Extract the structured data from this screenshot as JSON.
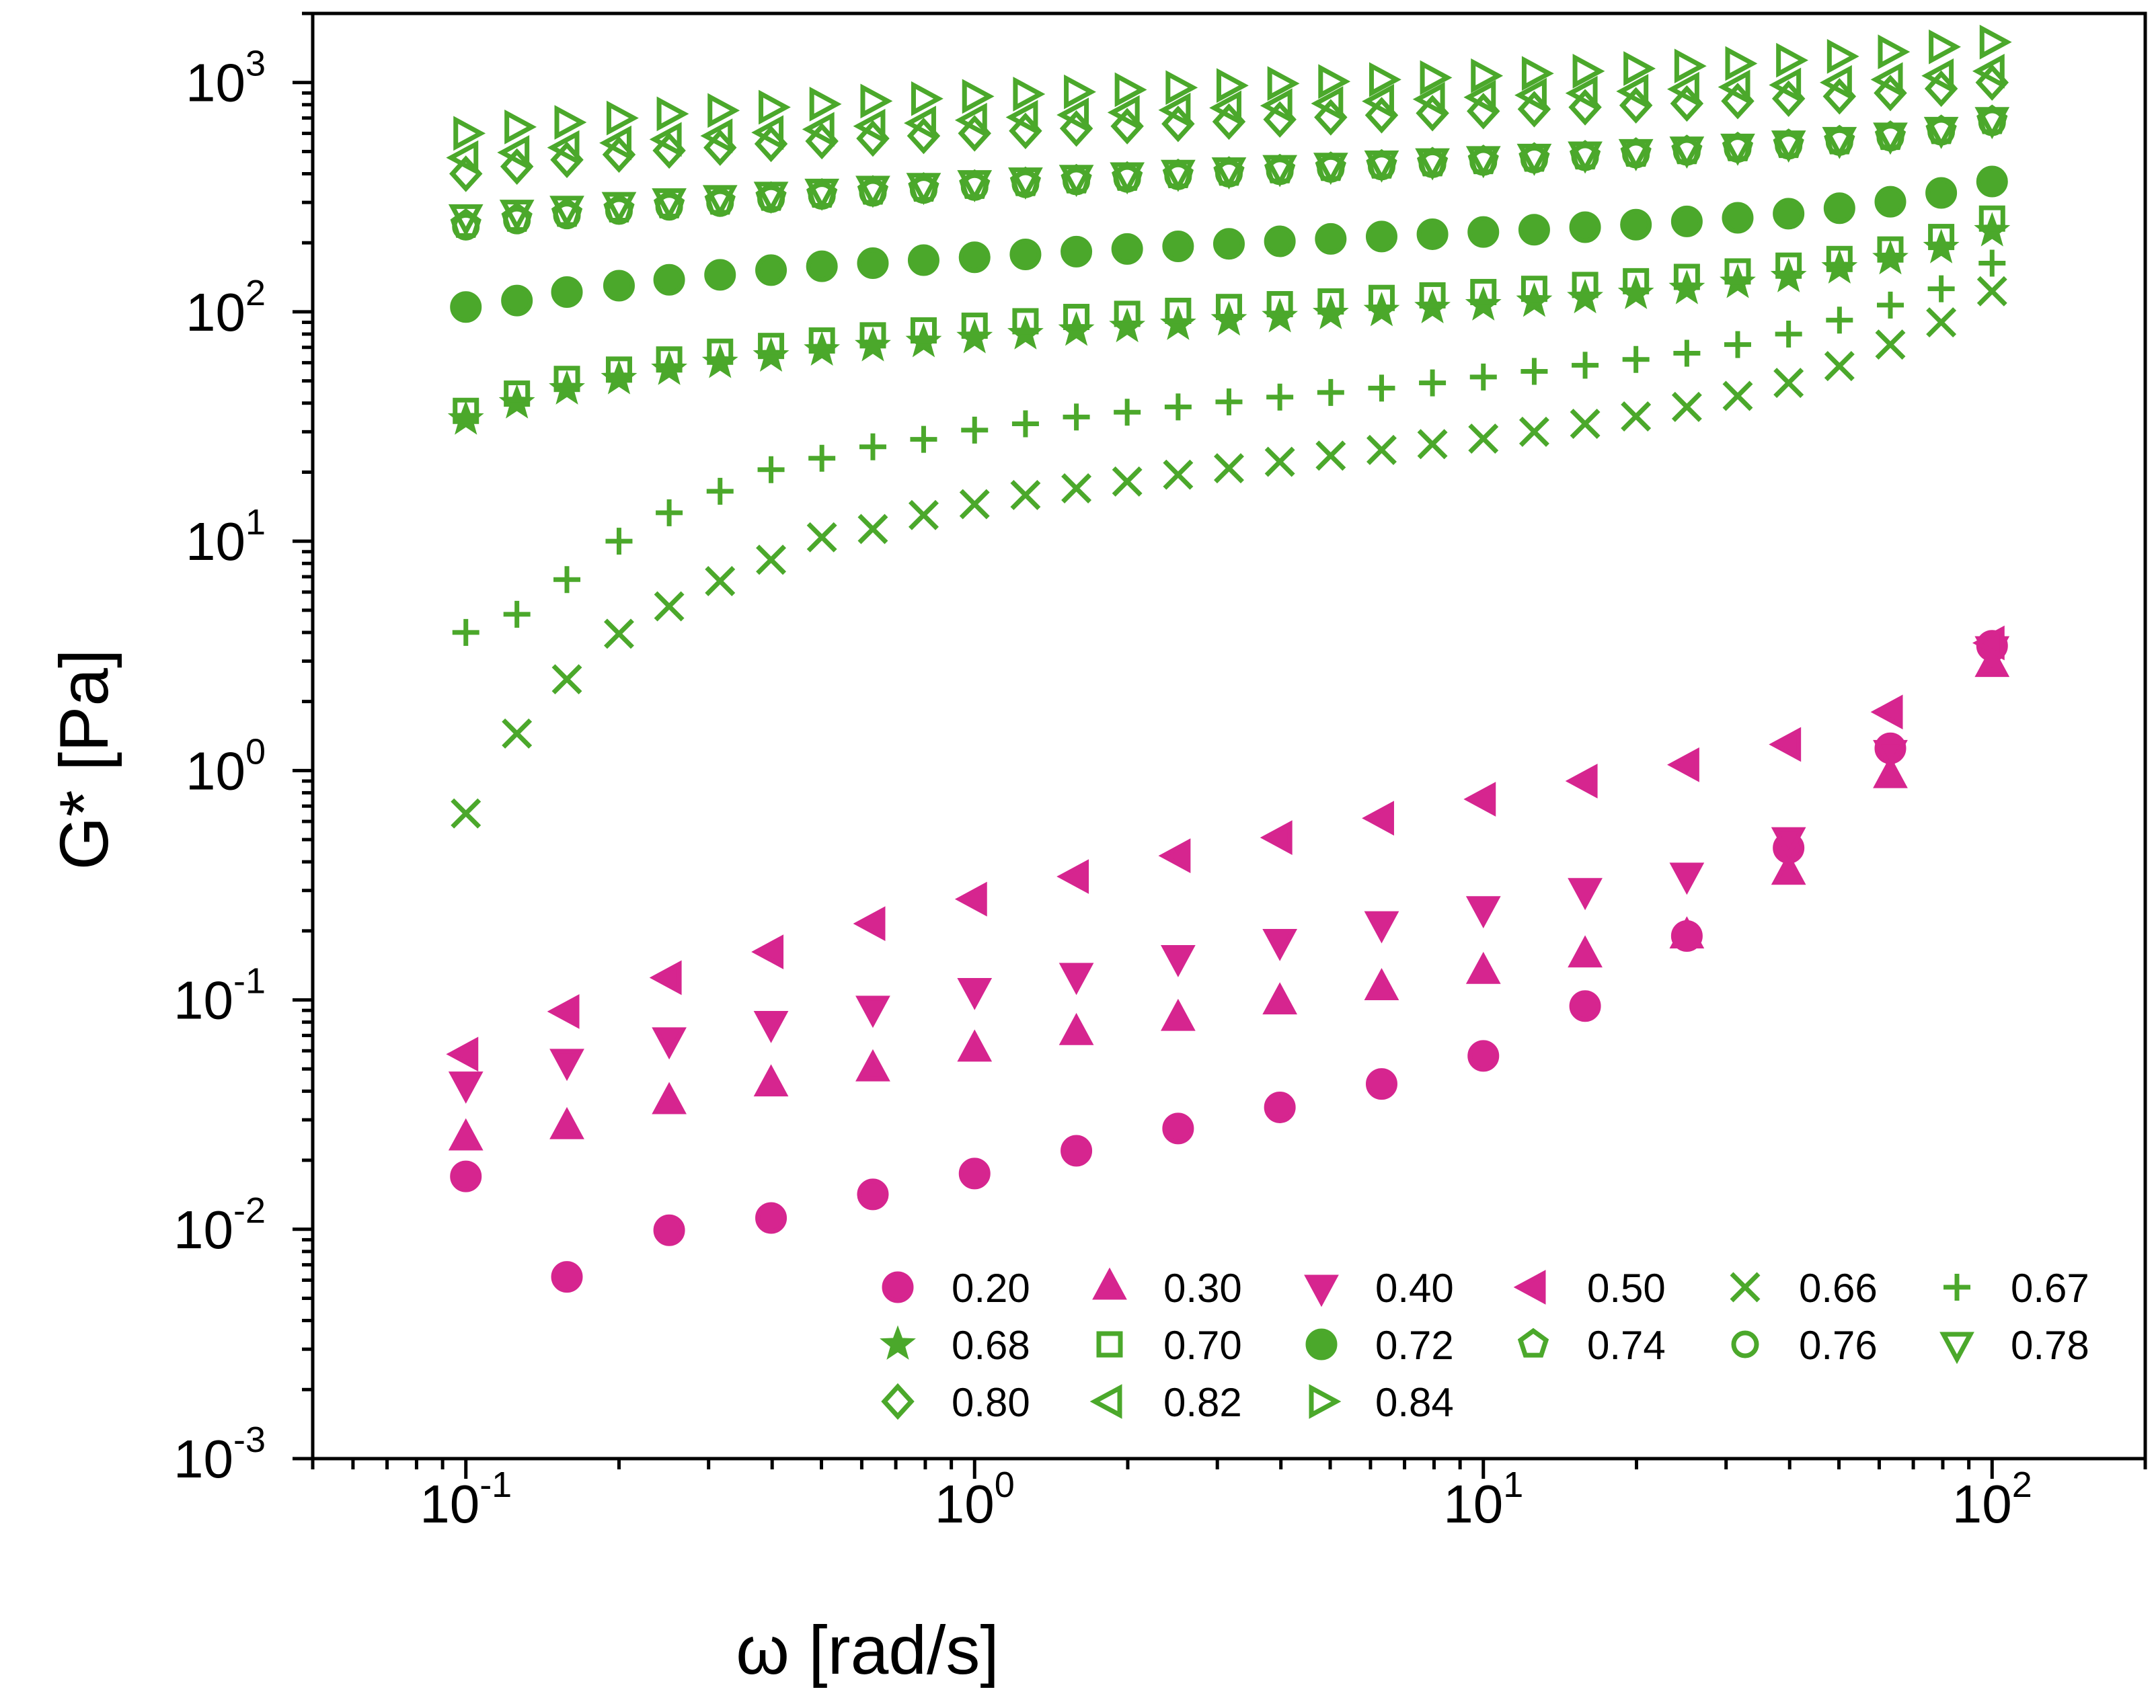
{
  "chart_data": {
    "type": "scatter",
    "xscale": "log",
    "yscale": "log",
    "xlim": [
      0.05,
      200
    ],
    "ylim": [
      0.001,
      2000
    ],
    "xlabel": "ω [rad/s]",
    "ylabel": "G* [Pa]",
    "x_ticks": [
      {
        "value": 0.1,
        "base": "10",
        "exp": "-1"
      },
      {
        "value": 1,
        "base": "10",
        "exp": "0"
      },
      {
        "value": 10,
        "base": "10",
        "exp": "1"
      },
      {
        "value": 100,
        "base": "10",
        "exp": "2"
      }
    ],
    "y_ticks": [
      {
        "value": 0.001,
        "base": "10",
        "exp": "-3"
      },
      {
        "value": 0.01,
        "base": "10",
        "exp": "-2"
      },
      {
        "value": 0.1,
        "base": "10",
        "exp": "-1"
      },
      {
        "value": 1,
        "base": "10",
        "exp": "0"
      },
      {
        "value": 10,
        "base": "10",
        "exp": "1"
      },
      {
        "value": 100,
        "base": "10",
        "exp": "2"
      },
      {
        "value": 1000,
        "base": "10",
        "exp": "3"
      }
    ],
    "legend_position": "bottom-right",
    "colors": {
      "magenta": "#d6258f",
      "green": "#4ba82b"
    },
    "series": [
      {
        "name": "0.20",
        "marker": "circle",
        "filled": true,
        "color": "magenta",
        "x": [
          0.1,
          0.158,
          0.251,
          0.398,
          0.631,
          1.0,
          1.585,
          2.512,
          3.981,
          6.31,
          10.0,
          15.85,
          25.12,
          39.81,
          63.1,
          100.0
        ],
        "y": [
          0.017,
          0.0062,
          0.0099,
          0.0112,
          0.0142,
          0.0175,
          0.022,
          0.0275,
          0.034,
          0.043,
          0.057,
          0.094,
          0.19,
          0.46,
          1.25,
          3.5
        ]
      },
      {
        "name": "0.30",
        "marker": "triangle-up",
        "filled": true,
        "color": "magenta",
        "x": [
          0.1,
          0.158,
          0.251,
          0.398,
          0.631,
          1.0,
          1.585,
          2.512,
          3.981,
          6.31,
          10.0,
          15.85,
          25.12,
          39.81,
          63.1,
          100.0
        ],
        "y": [
          0.025,
          0.028,
          0.036,
          0.043,
          0.05,
          0.061,
          0.072,
          0.083,
          0.098,
          0.113,
          0.133,
          0.157,
          0.19,
          0.36,
          0.95,
          2.9
        ]
      },
      {
        "name": "0.40",
        "marker": "triangle-down",
        "filled": true,
        "color": "magenta",
        "x": [
          0.1,
          0.158,
          0.251,
          0.398,
          0.631,
          1.0,
          1.585,
          2.512,
          3.981,
          6.31,
          10.0,
          15.85,
          25.12,
          39.81,
          63.1,
          100.0
        ],
        "y": [
          0.043,
          0.054,
          0.067,
          0.079,
          0.092,
          0.11,
          0.128,
          0.153,
          0.18,
          0.215,
          0.25,
          0.3,
          0.35,
          0.5,
          1.2,
          3.4
        ]
      },
      {
        "name": "0.50",
        "marker": "triangle-left",
        "filled": true,
        "color": "magenta",
        "x": [
          0.1,
          0.158,
          0.251,
          0.398,
          0.631,
          1.0,
          1.585,
          2.512,
          3.981,
          6.31,
          10.0,
          15.85,
          25.12,
          39.81,
          63.1,
          100.0
        ],
        "y": [
          0.058,
          0.089,
          0.125,
          0.162,
          0.215,
          0.275,
          0.345,
          0.425,
          0.51,
          0.62,
          0.75,
          0.9,
          1.06,
          1.3,
          1.8,
          3.6
        ]
      },
      {
        "name": "0.66",
        "marker": "x",
        "filled": false,
        "color": "green",
        "x": [
          0.1,
          0.126,
          0.158,
          0.2,
          0.251,
          0.316,
          0.398,
          0.501,
          0.631,
          0.794,
          1.0,
          1.259,
          1.585,
          1.995,
          2.512,
          3.162,
          3.981,
          5.012,
          6.31,
          7.943,
          10.0,
          12.59,
          15.85,
          19.95,
          25.12,
          31.62,
          39.81,
          50.12,
          63.1,
          79.43,
          100.0
        ],
        "y": [
          0.65,
          1.45,
          2.5,
          3.95,
          5.2,
          6.7,
          8.3,
          10.4,
          11.3,
          13.0,
          14.5,
          15.9,
          17.0,
          18.2,
          19.5,
          20.8,
          22.2,
          23.6,
          25.0,
          26.5,
          28.0,
          30.0,
          32.5,
          35.0,
          38.5,
          43.0,
          49.0,
          58.0,
          72.0,
          90.0,
          123.0
        ]
      },
      {
        "name": "0.67",
        "marker": "plus",
        "filled": false,
        "color": "green",
        "x": [
          0.1,
          0.126,
          0.158,
          0.2,
          0.251,
          0.316,
          0.398,
          0.501,
          0.631,
          0.794,
          1.0,
          1.259,
          1.585,
          1.995,
          2.512,
          3.162,
          3.981,
          5.012,
          6.31,
          7.943,
          10.0,
          12.59,
          15.85,
          19.95,
          25.12,
          31.62,
          39.81,
          50.12,
          63.1,
          79.43,
          100.0
        ],
        "y": [
          4.0,
          4.8,
          6.8,
          10.0,
          13.3,
          16.5,
          20.5,
          23.0,
          25.8,
          27.8,
          30.5,
          32.5,
          34.8,
          36.5,
          38.5,
          40.5,
          42.5,
          44.5,
          46.5,
          49.0,
          52.0,
          55.0,
          58.5,
          62.0,
          66.0,
          72.0,
          80.0,
          92.0,
          107.0,
          126.0,
          163.0
        ]
      },
      {
        "name": "0.68",
        "marker": "star",
        "filled": true,
        "color": "green",
        "x": [
          0.1,
          0.126,
          0.158,
          0.2,
          0.251,
          0.316,
          0.398,
          0.501,
          0.631,
          0.794,
          1.0,
          1.259,
          1.585,
          1.995,
          2.512,
          3.162,
          3.981,
          5.012,
          6.31,
          7.943,
          10.0,
          12.59,
          15.85,
          19.95,
          25.12,
          31.62,
          39.81,
          50.12,
          63.1,
          79.43,
          100.0
        ],
        "y": [
          34.0,
          40.0,
          46.0,
          51.0,
          56.0,
          60.0,
          64.0,
          68.0,
          71.0,
          74.0,
          77.0,
          80.0,
          83.0,
          86.0,
          88.0,
          92.0,
          95.0,
          98.0,
          101.0,
          104.0,
          107.0,
          111.0,
          115.0,
          120.0,
          126.0,
          134.0,
          142.0,
          155.0,
          170.0,
          190.0,
          225.0
        ]
      },
      {
        "name": "0.70",
        "marker": "square",
        "filled": false,
        "color": "green",
        "x": [
          0.1,
          0.126,
          0.158,
          0.2,
          0.251,
          0.316,
          0.398,
          0.501,
          0.631,
          0.794,
          1.0,
          1.259,
          1.585,
          1.995,
          2.512,
          3.162,
          3.981,
          5.012,
          6.31,
          7.943,
          10.0,
          12.59,
          15.85,
          19.95,
          25.12,
          31.62,
          39.81,
          50.12,
          63.1,
          79.43,
          100.0
        ],
        "y": [
          37.0,
          44.0,
          51.0,
          56.0,
          62.0,
          67.0,
          71.0,
          75.0,
          79.0,
          83.0,
          87.0,
          91.0,
          95.0,
          98.0,
          101.0,
          105.0,
          108.0,
          111.0,
          115.0,
          118.0,
          122.0,
          126.0,
          131.0,
          136.0,
          142.0,
          150.0,
          159.0,
          170.0,
          187.0,
          212.0,
          255.0
        ]
      },
      {
        "name": "0.72",
        "marker": "circle",
        "filled": true,
        "color": "green",
        "x": [
          0.1,
          0.126,
          0.158,
          0.2,
          0.251,
          0.316,
          0.398,
          0.501,
          0.631,
          0.794,
          1.0,
          1.259,
          1.585,
          1.995,
          2.512,
          3.162,
          3.981,
          5.012,
          6.31,
          7.943,
          10.0,
          12.59,
          15.85,
          19.95,
          25.12,
          31.62,
          39.81,
          50.12,
          63.1,
          79.43,
          100.0
        ],
        "y": [
          105.0,
          112.0,
          122.0,
          130.0,
          138.0,
          145.0,
          152.0,
          158.0,
          163.0,
          168.0,
          173.0,
          178.0,
          183.0,
          188.0,
          193.0,
          198.0,
          203.0,
          208.0,
          213.0,
          218.0,
          223.0,
          228.0,
          234.0,
          240.0,
          248.0,
          257.0,
          268.0,
          283.0,
          302.0,
          330.0,
          370.0
        ]
      },
      {
        "name": "0.74",
        "marker": "pentagon",
        "filled": false,
        "color": "green",
        "x": [
          0.1,
          0.126,
          0.158,
          0.2,
          0.251,
          0.316,
          0.398,
          0.501,
          0.631,
          0.794,
          1.0,
          1.259,
          1.585,
          1.995,
          2.512,
          3.162,
          3.981,
          5.012,
          6.31,
          7.943,
          10.0,
          12.59,
          15.85,
          19.95,
          25.12,
          31.62,
          39.81,
          50.12,
          63.1,
          79.43,
          100.0
        ],
        "y": [
          240.0,
          255.0,
          268.0,
          280.0,
          292.0,
          303.0,
          315.0,
          325.0,
          335.0,
          345.0,
          355.0,
          365.0,
          375.0,
          385.0,
          395.0,
          405.0,
          415.0,
          425.0,
          435.0,
          445.0,
          455.0,
          466.0,
          477.0,
          490.0,
          503.0,
          518.0,
          535.0,
          555.0,
          580.0,
          615.0,
          680.0
        ]
      },
      {
        "name": "0.76",
        "marker": "circle",
        "filled": false,
        "color": "green",
        "x": [
          0.1,
          0.126,
          0.158,
          0.2,
          0.251,
          0.316,
          0.398,
          0.501,
          0.631,
          0.794,
          1.0,
          1.259,
          1.585,
          1.995,
          2.512,
          3.162,
          3.981,
          5.012,
          6.31,
          7.943,
          10.0,
          12.59,
          15.85,
          19.95,
          25.12,
          31.62,
          39.81,
          50.12,
          63.1,
          79.43,
          100.0
        ],
        "y": [
          235.0,
          250.0,
          263.0,
          275.0,
          287.0,
          298.0,
          310.0,
          320.0,
          330.0,
          340.0,
          350.0,
          360.0,
          370.0,
          380.0,
          390.0,
          400.0,
          410.0,
          420.0,
          430.0,
          440.0,
          450.0,
          461.0,
          472.0,
          485.0,
          498.0,
          513.0,
          530.0,
          550.0,
          575.0,
          610.0,
          670.0
        ]
      },
      {
        "name": "0.78",
        "marker": "triangle-down",
        "filled": false,
        "color": "green",
        "x": [
          0.1,
          0.126,
          0.158,
          0.2,
          0.251,
          0.316,
          0.398,
          0.501,
          0.631,
          0.794,
          1.0,
          1.259,
          1.585,
          1.995,
          2.512,
          3.162,
          3.981,
          5.012,
          6.31,
          7.943,
          10.0,
          12.59,
          15.85,
          19.95,
          25.12,
          31.62,
          39.81,
          50.12,
          63.1,
          79.43,
          100.0
        ],
        "y": [
          260.0,
          272.0,
          283.0,
          294.0,
          305.0,
          315.0,
          326.0,
          336.0,
          346.0,
          356.0,
          366.0,
          376.0,
          386.0,
          396.0,
          406.0,
          416.0,
          426.0,
          436.0,
          446.0,
          456.0,
          466.0,
          477.0,
          488.0,
          500.0,
          513.0,
          528.0,
          545.0,
          565.0,
          590.0,
          625.0,
          690.0
        ]
      },
      {
        "name": "0.80",
        "marker": "diamond",
        "filled": false,
        "color": "green",
        "x": [
          0.1,
          0.126,
          0.158,
          0.2,
          0.251,
          0.316,
          0.398,
          0.501,
          0.631,
          0.794,
          1.0,
          1.259,
          1.585,
          1.995,
          2.512,
          3.162,
          3.981,
          5.012,
          6.31,
          7.943,
          10.0,
          12.59,
          15.85,
          19.95,
          25.12,
          31.62,
          39.81,
          50.12,
          63.1,
          79.43,
          100.0
        ],
        "y": [
          400.0,
          430.0,
          460.0,
          485.0,
          505.0,
          520.0,
          540.0,
          555.0,
          570.0,
          585.0,
          600.0,
          615.0,
          630.0,
          645.0,
          660.0,
          675.0,
          690.0,
          705.0,
          720.0,
          735.0,
          750.0,
          765.0,
          780.0,
          795.0,
          810.0,
          830.0,
          850.0,
          870.0,
          900.0,
          940.0,
          1000.0
        ]
      },
      {
        "name": "0.82",
        "marker": "triangle-left",
        "filled": false,
        "color": "green",
        "x": [
          0.1,
          0.126,
          0.158,
          0.2,
          0.251,
          0.316,
          0.398,
          0.501,
          0.631,
          0.794,
          1.0,
          1.259,
          1.585,
          1.995,
          2.512,
          3.162,
          3.981,
          5.012,
          6.31,
          7.943,
          10.0,
          12.59,
          15.85,
          19.95,
          25.12,
          31.62,
          39.81,
          50.12,
          63.1,
          79.43,
          100.0
        ],
        "y": [
          470.0,
          495.0,
          520.0,
          545.0,
          565.0,
          585.0,
          605.0,
          625.0,
          645.0,
          665.0,
          685.0,
          705.0,
          722.0,
          740.0,
          758.0,
          775.0,
          792.0,
          810.0,
          828.0,
          845.0,
          862.0,
          880.0,
          898.0,
          915.0,
          935.0,
          955.0,
          975.0,
          1000.0,
          1030.0,
          1070.0,
          1120.0
        ]
      },
      {
        "name": "0.84",
        "marker": "triangle-right",
        "filled": false,
        "color": "green",
        "x": [
          0.1,
          0.126,
          0.158,
          0.2,
          0.251,
          0.316,
          0.398,
          0.501,
          0.631,
          0.794,
          1.0,
          1.259,
          1.585,
          1.995,
          2.512,
          3.162,
          3.981,
          5.012,
          6.31,
          7.943,
          10.0,
          12.59,
          15.85,
          19.95,
          25.12,
          31.62,
          39.81,
          50.12,
          63.1,
          79.43,
          100.0
        ],
        "y": [
          600.0,
          640.0,
          670.0,
          700.0,
          730.0,
          755.0,
          780.0,
          805.0,
          830.0,
          850.0,
          870.0,
          890.0,
          910.0,
          930.0,
          950.0,
          970.0,
          990.0,
          1010.0,
          1030.0,
          1050.0,
          1070.0,
          1095.0,
          1120.0,
          1150.0,
          1180.0,
          1210.0,
          1250.0,
          1300.0,
          1360.0,
          1430.0,
          1500.0
        ]
      }
    ]
  }
}
